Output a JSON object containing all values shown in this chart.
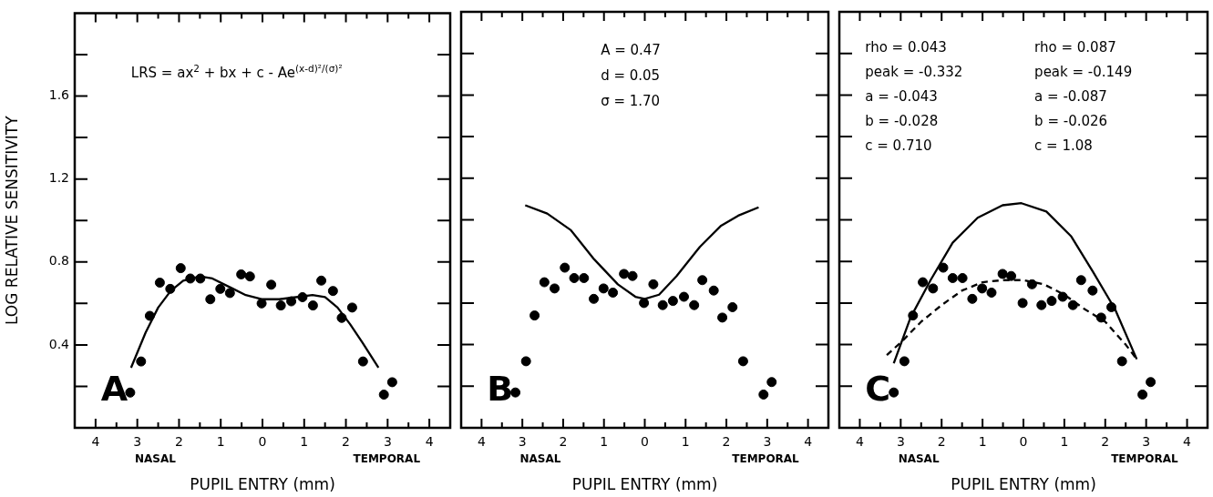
{
  "chart_data": [
    {
      "type": "scatter",
      "xlabel": "PUPIL ENTRY (mm)",
      "ylabel": "LOG RELATIVE SENSITIVITY",
      "xlim": [
        -4.5,
        4.5
      ],
      "ylim": [
        0,
        2
      ],
      "xticks": [
        {
          "value": -4,
          "label": "4"
        },
        {
          "value": -3.5,
          "label": null
        },
        {
          "value": -3,
          "label": "3"
        },
        {
          "value": -2.5,
          "label": null
        },
        {
          "value": -2,
          "label": "2"
        },
        {
          "value": -1.5,
          "label": null
        },
        {
          "value": -1,
          "label": "1"
        },
        {
          "value": -0.5,
          "label": null
        },
        {
          "value": 0,
          "label": "0"
        },
        {
          "value": 0.5,
          "label": null
        },
        {
          "value": 1,
          "label": "1"
        },
        {
          "value": 1.5,
          "label": null
        },
        {
          "value": 2,
          "label": "2"
        },
        {
          "value": 2.5,
          "label": null
        },
        {
          "value": 3,
          "label": "3"
        },
        {
          "value": 3.5,
          "label": null
        },
        {
          "value": 4,
          "label": "4"
        }
      ],
      "yticks": [
        {
          "value": 0.2,
          "label": null
        },
        0.4,
        {
          "value": 0.6,
          "label": null
        },
        0.8,
        {
          "value": 1.0,
          "label": null
        },
        1.2,
        {
          "value": 1.4,
          "label": null
        },
        1.6,
        {
          "value": 1.8,
          "label": null
        }
      ],
      "annotations": [
        "A",
        "NASAL",
        "TEMPORAL",
        "LRS = ax$^{2}$ + bx + c - Ae$^{(x-d)²/(σ)²}$"
      ],
      "legend": false,
      "series": [
        {
          "type": "scatter",
          "marker": "circle",
          "color": "#000000",
          "x": [
            -3.17,
            -2.91,
            -2.7,
            -2.46,
            -2.21,
            -1.96,
            -1.73,
            -1.49,
            -1.25,
            -1.01,
            -0.78,
            -0.51,
            -0.3,
            -0.02,
            0.21,
            0.44,
            0.69,
            0.96,
            1.21,
            1.41,
            1.69,
            1.9,
            2.15,
            2.41,
            2.91,
            3.11
          ],
          "values": [
            0.17,
            0.32,
            0.54,
            0.7,
            0.67,
            0.77,
            0.72,
            0.72,
            0.62,
            0.67,
            0.65,
            0.74,
            0.73,
            0.6,
            0.69,
            0.59,
            0.61,
            0.63,
            0.59,
            0.71,
            0.66,
            0.53,
            0.58,
            0.32,
            0.16,
            0.22
          ]
        },
        {
          "type": "line",
          "marker": "none",
          "line_style": "solid",
          "color": "#000000",
          "x": [
            -3.15,
            -2.8,
            -2.5,
            -2.2,
            -1.9,
            -1.5,
            -1.2,
            -0.8,
            -0.4,
            0,
            0.4,
            0.8,
            1.2,
            1.5,
            1.8,
            2.1,
            2.4,
            2.78
          ],
          "values": [
            0.29,
            0.46,
            0.58,
            0.66,
            0.71,
            0.73,
            0.72,
            0.68,
            0.64,
            0.62,
            0.62,
            0.63,
            0.64,
            0.63,
            0.58,
            0.5,
            0.41,
            0.29
          ]
        }
      ]
    },
    {
      "type": "scatter",
      "xlabel": "PUPIL ENTRY (mm)",
      "xlim": [
        -4.5,
        4.5
      ],
      "ylim": [
        0,
        2
      ],
      "tick_labels": "x",
      "xticks": [
        {
          "value": -4,
          "label": "4"
        },
        {
          "value": -3.5,
          "label": null
        },
        {
          "value": -3,
          "label": "3"
        },
        {
          "value": -2.5,
          "label": null
        },
        {
          "value": -2,
          "label": "2"
        },
        {
          "value": -1.5,
          "label": null
        },
        {
          "value": -1,
          "label": "1"
        },
        {
          "value": -0.5,
          "label": null
        },
        {
          "value": 0,
          "label": "0"
        },
        {
          "value": 0.5,
          "label": null
        },
        {
          "value": 1,
          "label": "1"
        },
        {
          "value": 1.5,
          "label": null
        },
        {
          "value": 2,
          "label": "2"
        },
        {
          "value": 2.5,
          "label": null
        },
        {
          "value": 3,
          "label": "3"
        },
        {
          "value": 3.5,
          "label": null
        },
        {
          "value": 4,
          "label": "4"
        }
      ],
      "yticks": [
        {
          "value": 0.2,
          "label": null
        },
        {
          "value": 0.4,
          "label": null
        },
        {
          "value": 0.6,
          "label": null
        },
        {
          "value": 0.8,
          "label": null
        },
        {
          "value": 1.0,
          "label": null
        },
        {
          "value": 1.2,
          "label": null
        },
        {
          "value": 1.4,
          "label": null
        },
        {
          "value": 1.6,
          "label": null
        },
        {
          "value": 1.8,
          "label": null
        }
      ],
      "annotations": [
        "B",
        "NASAL",
        "TEMPORAL",
        "A = 0.47",
        "d = 0.05",
        "σ = 1.70"
      ],
      "legend": false,
      "series": [
        {
          "type": "scatter",
          "marker": "circle",
          "color": "#000000",
          "x": [
            -3.17,
            -2.91,
            -2.7,
            -2.46,
            -2.21,
            -1.96,
            -1.73,
            -1.49,
            -1.25,
            -1.01,
            -0.78,
            -0.51,
            -0.3,
            -0.02,
            0.21,
            0.44,
            0.69,
            0.96,
            1.21,
            1.41,
            1.69,
            1.9,
            2.15,
            2.41,
            2.91,
            3.11
          ],
          "values": [
            0.17,
            0.32,
            0.54,
            0.7,
            0.67,
            0.77,
            0.72,
            0.72,
            0.62,
            0.67,
            0.65,
            0.74,
            0.73,
            0.6,
            0.69,
            0.59,
            0.61,
            0.63,
            0.59,
            0.71,
            0.66,
            0.53,
            0.58,
            0.32,
            0.16,
            0.22
          ]
        },
        {
          "type": "line",
          "marker": "none",
          "line_style": "solid",
          "color": "#000000",
          "x": [
            -2.93,
            -2.39,
            -1.81,
            -1.24,
            -0.66,
            -0.23,
            0,
            0.35,
            0.78,
            1.35,
            1.86,
            2.29,
            2.79
          ],
          "values": [
            1.07,
            1.03,
            0.95,
            0.81,
            0.69,
            0.63,
            0.62,
            0.64,
            0.73,
            0.87,
            0.97,
            1.02,
            1.06
          ]
        }
      ]
    },
    {
      "type": "scatter",
      "xlabel": "PUPIL ENTRY (mm)",
      "xlim": [
        -4.5,
        4.5
      ],
      "ylim": [
        0,
        2
      ],
      "tick_labels": "x",
      "xticks": [
        {
          "value": -4,
          "label": "4"
        },
        {
          "value": -3.5,
          "label": null
        },
        {
          "value": -3,
          "label": "3"
        },
        {
          "value": -2.5,
          "label": null
        },
        {
          "value": -2,
          "label": "2"
        },
        {
          "value": -1.5,
          "label": null
        },
        {
          "value": -1,
          "label": "1"
        },
        {
          "value": -0.5,
          "label": null
        },
        {
          "value": 0,
          "label": "0"
        },
        {
          "value": 0.5,
          "label": null
        },
        {
          "value": 1,
          "label": "1"
        },
        {
          "value": 1.5,
          "label": null
        },
        {
          "value": 2,
          "label": "2"
        },
        {
          "value": 2.5,
          "label": null
        },
        {
          "value": 3,
          "label": "3"
        },
        {
          "value": 3.5,
          "label": null
        },
        {
          "value": 4,
          "label": "4"
        }
      ],
      "yticks": [
        {
          "value": 0.2,
          "label": null
        },
        {
          "value": 0.4,
          "label": null
        },
        {
          "value": 0.6,
          "label": null
        },
        {
          "value": 0.8,
          "label": null
        },
        {
          "value": 1.0,
          "label": null
        },
        {
          "value": 1.2,
          "label": null
        },
        {
          "value": 1.4,
          "label": null
        },
        {
          "value": 1.6,
          "label": null
        },
        {
          "value": 1.8,
          "label": null
        }
      ],
      "annotations": [
        "C",
        "NASAL",
        "TEMPORAL",
        "rho = 0.043",
        "peak = -0.332",
        "a = -0.043",
        "b = -0.028",
        "c = 0.710",
        "rho = 0.087",
        "peak = -0.149",
        "a = -0.087",
        "b = -0.026",
        "c = 1.08"
      ],
      "legend": false,
      "series": [
        {
          "type": "scatter",
          "marker": "circle",
          "color": "#000000",
          "x": [
            -3.17,
            -2.91,
            -2.7,
            -2.46,
            -2.21,
            -1.96,
            -1.73,
            -1.49,
            -1.25,
            -1.01,
            -0.78,
            -0.51,
            -0.3,
            -0.02,
            0.21,
            0.44,
            0.69,
            0.96,
            1.21,
            1.41,
            1.69,
            1.9,
            2.15,
            2.41,
            2.91,
            3.11
          ],
          "values": [
            0.17,
            0.32,
            0.54,
            0.7,
            0.67,
            0.77,
            0.72,
            0.72,
            0.62,
            0.67,
            0.65,
            0.74,
            0.73,
            0.6,
            0.69,
            0.59,
            0.61,
            0.63,
            0.59,
            0.71,
            0.66,
            0.53,
            0.58,
            0.32,
            0.16,
            0.22
          ]
        },
        {
          "type": "line",
          "marker": "none",
          "line_style": "solid",
          "color": "#000000",
          "x": [
            -3.17,
            -2.76,
            -2.27,
            -1.73,
            -1.12,
            -0.51,
            -0.05,
            0.56,
            1.17,
            1.7,
            2.24,
            2.77
          ],
          "values": [
            0.31,
            0.53,
            0.71,
            0.89,
            1.01,
            1.07,
            1.08,
            1.04,
            0.92,
            0.75,
            0.57,
            0.33
          ]
        },
        {
          "type": "line",
          "marker": "none",
          "line_style": "dashed",
          "color": "#000000",
          "x": [
            -3.34,
            -3,
            -2.5,
            -2,
            -1.5,
            -1,
            -0.5,
            0,
            0.5,
            1,
            1.5,
            2,
            2.5,
            2.77
          ],
          "values": [
            0.35,
            0.41,
            0.51,
            0.59,
            0.66,
            0.7,
            0.71,
            0.71,
            0.69,
            0.64,
            0.57,
            0.51,
            0.4,
            0.33
          ]
        }
      ]
    }
  ]
}
